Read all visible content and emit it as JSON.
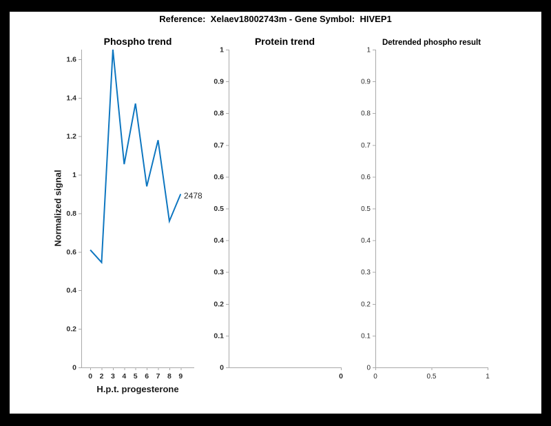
{
  "figure_title": "Reference:  Xelaev18002743m - Gene Symbol:  HIVEP1",
  "colors": {
    "line": "#0d76c0",
    "axis": "#a9a9a9",
    "tick_label": "#2b2b2b",
    "title": "#000000",
    "figure_background": "#ffffff",
    "frame_background": "#000000"
  },
  "chart_data": [
    {
      "type": "line",
      "title": "Phospho trend",
      "xlabel": "H.p.t. progesterone",
      "ylabel": "Normalized signal",
      "x": [
        1,
        2,
        3,
        4,
        5,
        6,
        7,
        8,
        9
      ],
      "x_tick_labels": [
        "0",
        "2",
        "3",
        "4",
        "5",
        "6",
        "7",
        "8",
        "9"
      ],
      "values": [
        0.61,
        0.545,
        1.65,
        1.055,
        1.37,
        0.94,
        1.18,
        0.76,
        0.9
      ],
      "xlim": [
        0.2,
        10.2
      ],
      "ylim": [
        0,
        1.65
      ],
      "grid": false,
      "legend": "none",
      "xticks": [
        {
          "v": 1,
          "label": "0"
        },
        {
          "v": 2,
          "label": "2"
        },
        {
          "v": 3,
          "label": "3"
        },
        {
          "v": 4,
          "label": "4"
        },
        {
          "v": 5,
          "label": "5"
        },
        {
          "v": 6,
          "label": "6"
        },
        {
          "v": 7,
          "label": "7"
        },
        {
          "v": 8,
          "label": "8"
        },
        {
          "v": 9,
          "label": "9"
        }
      ],
      "yticks": [
        {
          "v": 0,
          "label": "0"
        },
        {
          "v": 0.2,
          "label": "0.2"
        },
        {
          "v": 0.4,
          "label": "0.4"
        },
        {
          "v": 0.6,
          "label": "0.6"
        },
        {
          "v": 0.8,
          "label": "0.8"
        },
        {
          "v": 1,
          "label": "1"
        },
        {
          "v": 1.2,
          "label": "1.2"
        },
        {
          "v": 1.4,
          "label": "1.4"
        },
        {
          "v": 1.6,
          "label": "1.6"
        }
      ],
      "annotation": {
        "text": "2478",
        "x": 9,
        "y": 0.9
      }
    },
    {
      "type": "line",
      "title": "Protein trend",
      "xlabel": "",
      "ylabel": "",
      "x": [],
      "values": [],
      "xlim": [
        0,
        1
      ],
      "ylim": [
        0,
        1
      ],
      "grid": false,
      "legend": "none",
      "xticks": [
        {
          "v": 1,
          "label": "0"
        }
      ],
      "yticks": [
        {
          "v": 0,
          "label": "0"
        },
        {
          "v": 0.1,
          "label": "0.1"
        },
        {
          "v": 0.2,
          "label": "0.2"
        },
        {
          "v": 0.3,
          "label": "0.3"
        },
        {
          "v": 0.4,
          "label": "0.4"
        },
        {
          "v": 0.5,
          "label": "0.5"
        },
        {
          "v": 0.6,
          "label": "0.6"
        },
        {
          "v": 0.7,
          "label": "0.7"
        },
        {
          "v": 0.8,
          "label": "0.8"
        },
        {
          "v": 0.9,
          "label": "0.9"
        },
        {
          "v": 1,
          "label": "1"
        }
      ]
    },
    {
      "type": "line",
      "title": "Detrended phospho result",
      "xlabel": "",
      "ylabel": "",
      "x": [],
      "values": [],
      "xlim": [
        0,
        1
      ],
      "ylim": [
        0,
        1
      ],
      "grid": false,
      "legend": "none",
      "xticks": [
        {
          "v": 0,
          "label": "0"
        },
        {
          "v": 0.5,
          "label": "0.5"
        },
        {
          "v": 1,
          "label": "1"
        }
      ],
      "yticks": [
        {
          "v": 0,
          "label": "0"
        },
        {
          "v": 0.1,
          "label": "0.1"
        },
        {
          "v": 0.2,
          "label": "0.2"
        },
        {
          "v": 0.3,
          "label": "0.3"
        },
        {
          "v": 0.4,
          "label": "0.4"
        },
        {
          "v": 0.5,
          "label": "0.5"
        },
        {
          "v": 0.6,
          "label": "0.6"
        },
        {
          "v": 0.7,
          "label": "0.7"
        },
        {
          "v": 0.8,
          "label": "0.8"
        },
        {
          "v": 0.9,
          "label": "0.9"
        },
        {
          "v": 1,
          "label": "1"
        }
      ]
    }
  ]
}
